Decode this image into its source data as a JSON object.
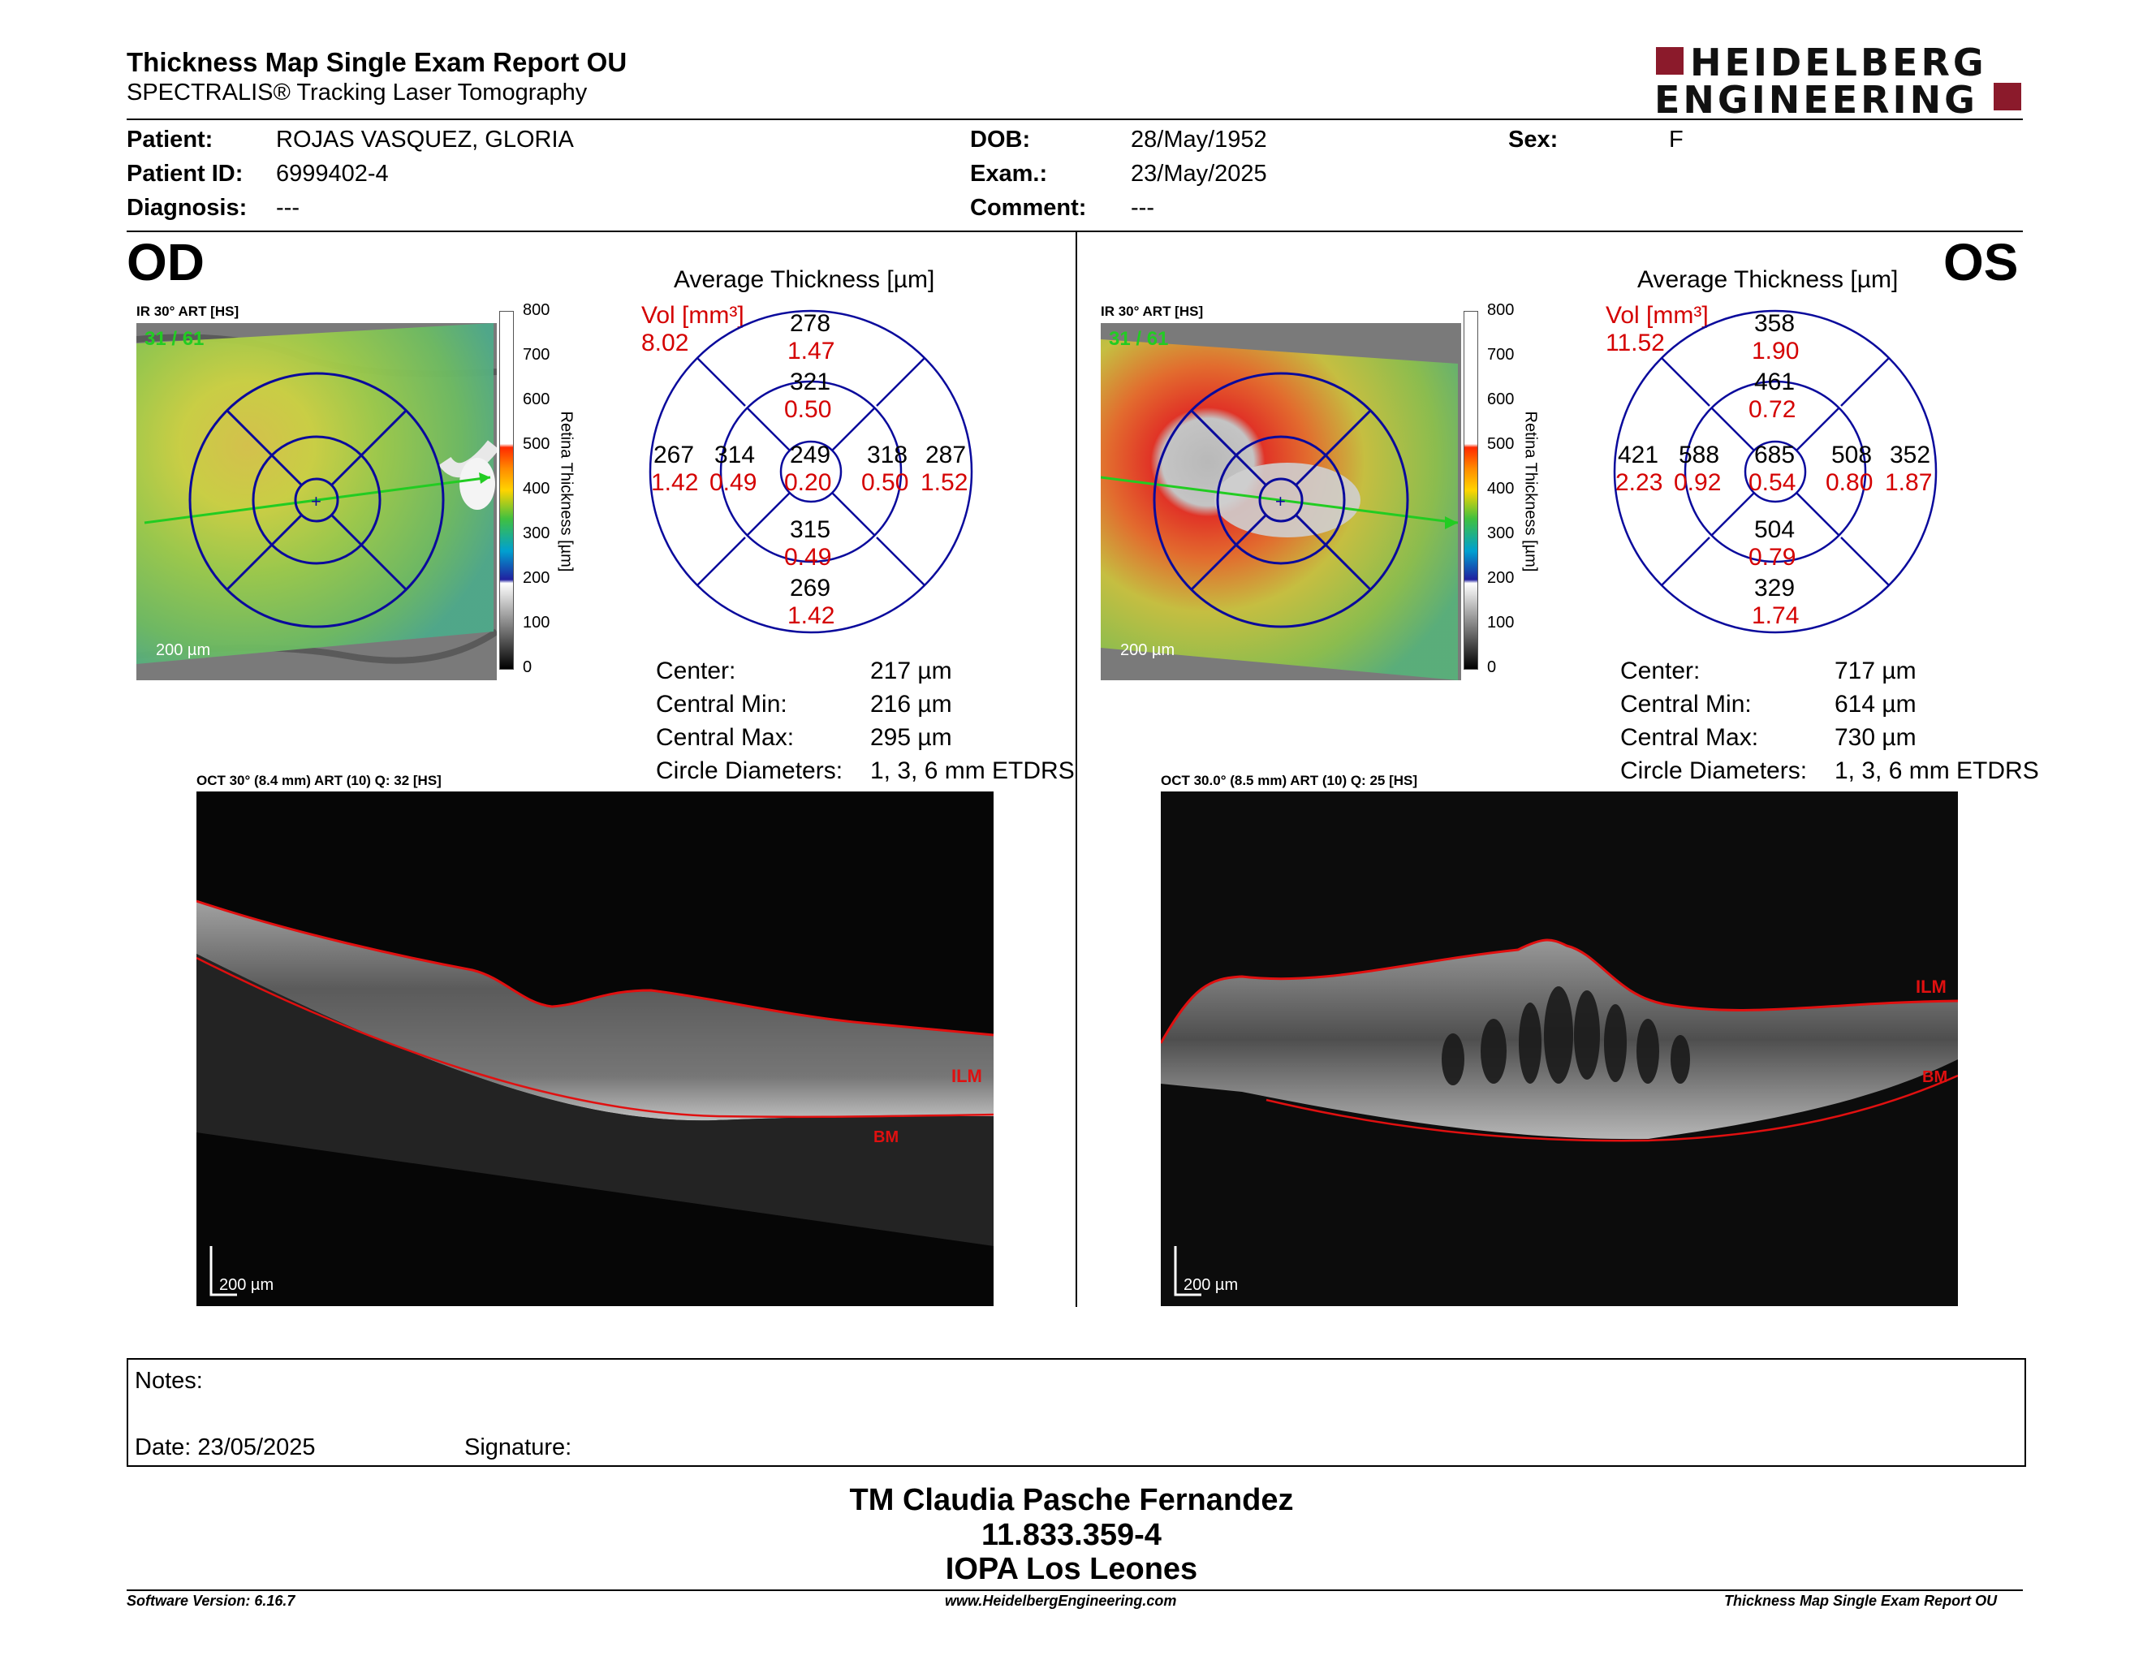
{
  "header": {
    "title": "Thickness Map Single Exam Report OU",
    "subtitle": "SPECTRALIS® Tracking Laser Tomography",
    "logo_line1": "HEIDELBERG",
    "logo_line2": "ENGINEERING",
    "logo_color": "#8b1a2b"
  },
  "patient": {
    "patient_label": "Patient:",
    "patient_value": "ROJAS VASQUEZ, GLORIA",
    "id_label": "Patient ID:",
    "id_value": "6999402-4",
    "diagnosis_label": "Diagnosis:",
    "diagnosis_value": "---",
    "dob_label": "DOB:",
    "dob_value": "28/May/1952",
    "exam_label": "Exam.:",
    "exam_value": "23/May/2025",
    "comment_label": "Comment:",
    "comment_value": "---",
    "sex_label": "Sex:",
    "sex_value": "F"
  },
  "od": {
    "eye": "OD",
    "ir_label": "IR 30° ART [HS]",
    "frame": "31 / 61",
    "scale": "200 µm",
    "colorbar_ticks": [
      "800",
      "700",
      "600",
      "500",
      "400",
      "300",
      "200",
      "100",
      "0"
    ],
    "colorbar_label": "Retina Thickness [µm]",
    "avg_title": "Average Thickness [µm]",
    "vol_label": "Vol [mm³]",
    "vol_total": "8.02",
    "sectors": {
      "outer_sup": {
        "t": "278",
        "v": "1.47"
      },
      "inner_sup": {
        "t": "321",
        "v": "0.50"
      },
      "outer_temp": {
        "t": "267",
        "v": "1.42"
      },
      "inner_temp": {
        "t": "314",
        "v": "0.49"
      },
      "center": {
        "t": "249",
        "v": "0.20"
      },
      "inner_nas": {
        "t": "318",
        "v": "0.50"
      },
      "outer_nas": {
        "t": "287",
        "v": "1.52"
      },
      "inner_inf": {
        "t": "315",
        "v": "0.49"
      },
      "outer_inf": {
        "t": "269",
        "v": "1.42"
      }
    },
    "stats": [
      {
        "k": "Center:",
        "v": "217 µm"
      },
      {
        "k": "Central Min:",
        "v": "216 µm"
      },
      {
        "k": "Central Max:",
        "v": "295 µm"
      },
      {
        "k": "Circle Diameters:",
        "v": "1, 3, 6 mm ETDRS"
      }
    ],
    "oct_label": "OCT 30° (8.4 mm) ART (10) Q: 32 [HS]",
    "oct_scale": "200 µm",
    "ilm": "ILM",
    "bm": "BM"
  },
  "os": {
    "eye": "OS",
    "ir_label": "IR 30° ART [HS]",
    "frame": "31 / 61",
    "scale": "200 µm",
    "colorbar_ticks": [
      "800",
      "700",
      "600",
      "500",
      "400",
      "300",
      "200",
      "100",
      "0"
    ],
    "colorbar_label": "Retina Thickness [µm]",
    "avg_title": "Average Thickness [µm]",
    "vol_label": "Vol [mm³]",
    "vol_total": "11.52",
    "sectors": {
      "outer_sup": {
        "t": "358",
        "v": "1.90"
      },
      "inner_sup": {
        "t": "461",
        "v": "0.72"
      },
      "outer_temp": {
        "t": "421",
        "v": "2.23"
      },
      "inner_temp": {
        "t": "588",
        "v": "0.92"
      },
      "center": {
        "t": "685",
        "v": "0.54"
      },
      "inner_nas": {
        "t": "508",
        "v": "0.80"
      },
      "outer_nas": {
        "t": "352",
        "v": "1.87"
      },
      "inner_inf": {
        "t": "504",
        "v": "0.79"
      },
      "outer_inf": {
        "t": "329",
        "v": "1.74"
      }
    },
    "stats": [
      {
        "k": "Center:",
        "v": "717 µm"
      },
      {
        "k": "Central Min:",
        "v": "614 µm"
      },
      {
        "k": "Central Max:",
        "v": "730 µm"
      },
      {
        "k": "Circle Diameters:",
        "v": "1, 3, 6 mm ETDRS"
      }
    ],
    "oct_label": "OCT 30.0° (8.5 mm) ART (10) Q: 25 [HS]",
    "oct_scale": "200 µm",
    "ilm": "ILM",
    "bm": "BM"
  },
  "notes": {
    "notes_label": "Notes:",
    "date_label": "Date: 23/05/2025",
    "signature_label": "Signature:"
  },
  "signature_block": {
    "name": "TM Claudia Pasche Fernandez",
    "rut": "11.833.359-4",
    "org": "IOPA Los Leones"
  },
  "footer": {
    "software": "Software Version: 6.16.7",
    "website": "www.HeidelbergEngineering.com",
    "report": "Thickness Map Single Exam Report OU"
  },
  "colors": {
    "grid_blue": "#0a0a9c",
    "vol_red": "#d40000",
    "frame_green": "#22cc22",
    "ilm_red": "#e01010"
  }
}
